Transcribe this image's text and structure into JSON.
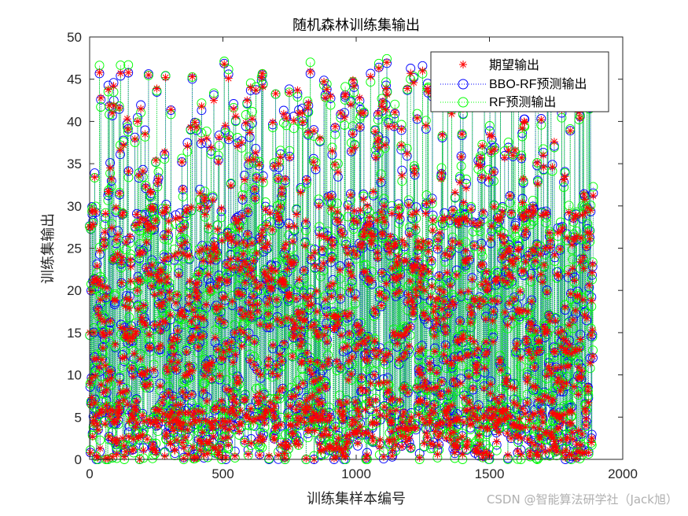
{
  "chart_data": {
    "type": "line",
    "title": "随机森林训练集输出",
    "xlabel": "训练集样本编号",
    "ylabel": "训练集输出",
    "xlim": [
      0,
      2000
    ],
    "ylim": [
      0,
      50
    ],
    "xticks": [
      0,
      500,
      1000,
      1500,
      2000
    ],
    "yticks": [
      0,
      5,
      10,
      15,
      20,
      25,
      30,
      35,
      40,
      45,
      50
    ],
    "grid": false,
    "legend_position": "top-right",
    "n_samples": 1890,
    "series": [
      {
        "name": "期望输出",
        "marker": "asterisk",
        "line": "none",
        "color": "#ff0000"
      },
      {
        "name": "BBO-RF预测输出",
        "marker": "circle",
        "line": "dotted",
        "color": "#0000ff"
      },
      {
        "name": "RF预测输出",
        "marker": "circle",
        "line": "dotted",
        "color": "#00ff00"
      }
    ],
    "sample_points": [
      {
        "x": 10,
        "y": 29.5
      },
      {
        "x": 90,
        "y": 44.2
      },
      {
        "x": 145,
        "y": 45.8
      },
      {
        "x": 180,
        "y": 40.0
      },
      {
        "x": 385,
        "y": 45.3
      },
      {
        "x": 505,
        "y": 46.8
      },
      {
        "x": 890,
        "y": 43.8
      },
      {
        "x": 960,
        "y": 42.0
      },
      {
        "x": 1085,
        "y": 46.3
      },
      {
        "x": 1115,
        "y": 47.0
      },
      {
        "x": 1270,
        "y": 43.5
      },
      {
        "x": 1590,
        "y": 42.5
      },
      {
        "x": 1880,
        "y": 29.5
      },
      {
        "x": 130,
        "y": 0.3
      },
      {
        "x": 960,
        "y": 0.3
      }
    ]
  },
  "watermark": "CSDN @智能算法研学社（Jack旭）"
}
